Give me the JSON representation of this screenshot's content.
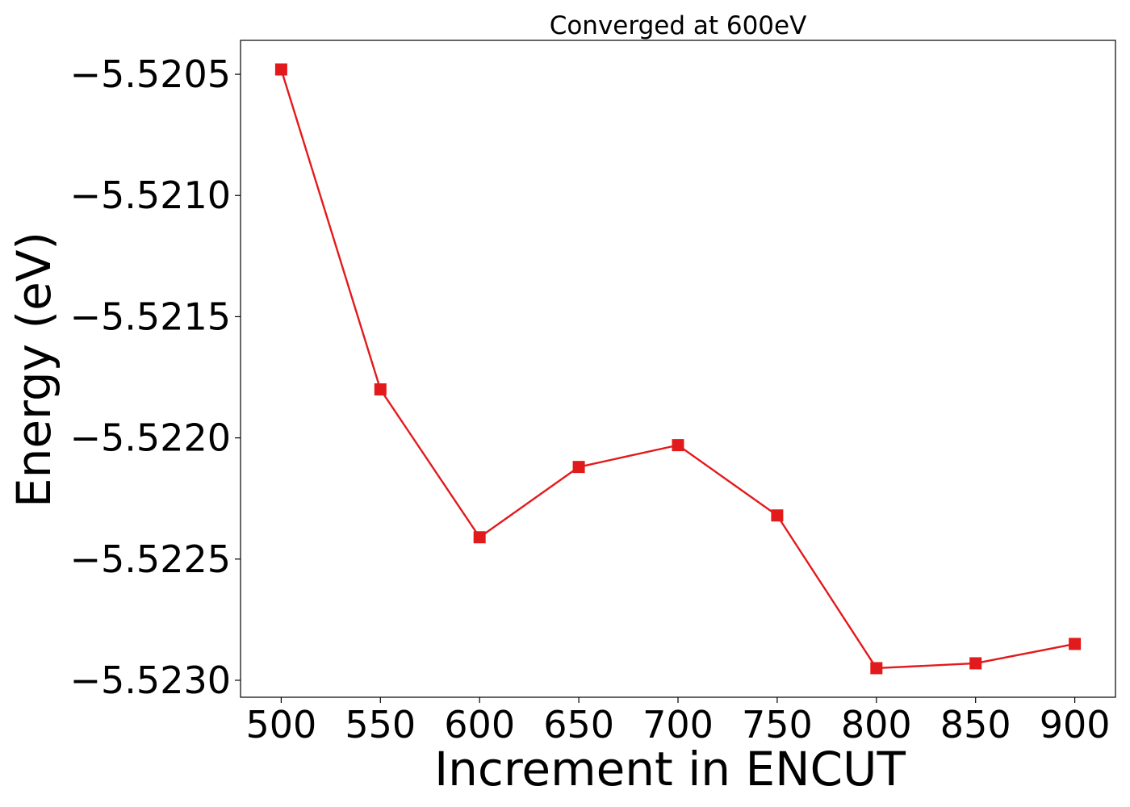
{
  "chart_data": {
    "type": "line",
    "title": "Converged at 600eV",
    "xlabel": "Increment in ENCUT",
    "ylabel": "Energy (eV)",
    "x": [
      500,
      550,
      600,
      650,
      700,
      750,
      800,
      850,
      900
    ],
    "series": [
      {
        "values": [
          -5.52048,
          -5.5218,
          -5.52241,
          -5.52212,
          -5.52203,
          -5.52232,
          -5.52295,
          -5.52293,
          -5.52285
        ],
        "color": "#e31a1c",
        "marker": "square"
      }
    ],
    "xticks": [
      500,
      550,
      600,
      650,
      700,
      750,
      800,
      850,
      900
    ],
    "xtick_labels": [
      "500",
      "550",
      "600",
      "650",
      "700",
      "750",
      "800",
      "850",
      "900"
    ],
    "yticks": [
      -5.5205,
      -5.521,
      -5.5215,
      -5.522,
      -5.5225,
      -5.523
    ],
    "ytick_labels": [
      "−5.5205",
      "−5.5210",
      "−5.5215",
      "−5.5220",
      "−5.5225",
      "−5.5230"
    ],
    "xlim": [
      479.5,
      920.5
    ],
    "ylim": [
      -5.52307,
      -5.52036
    ],
    "grid": false,
    "legend": "none"
  }
}
